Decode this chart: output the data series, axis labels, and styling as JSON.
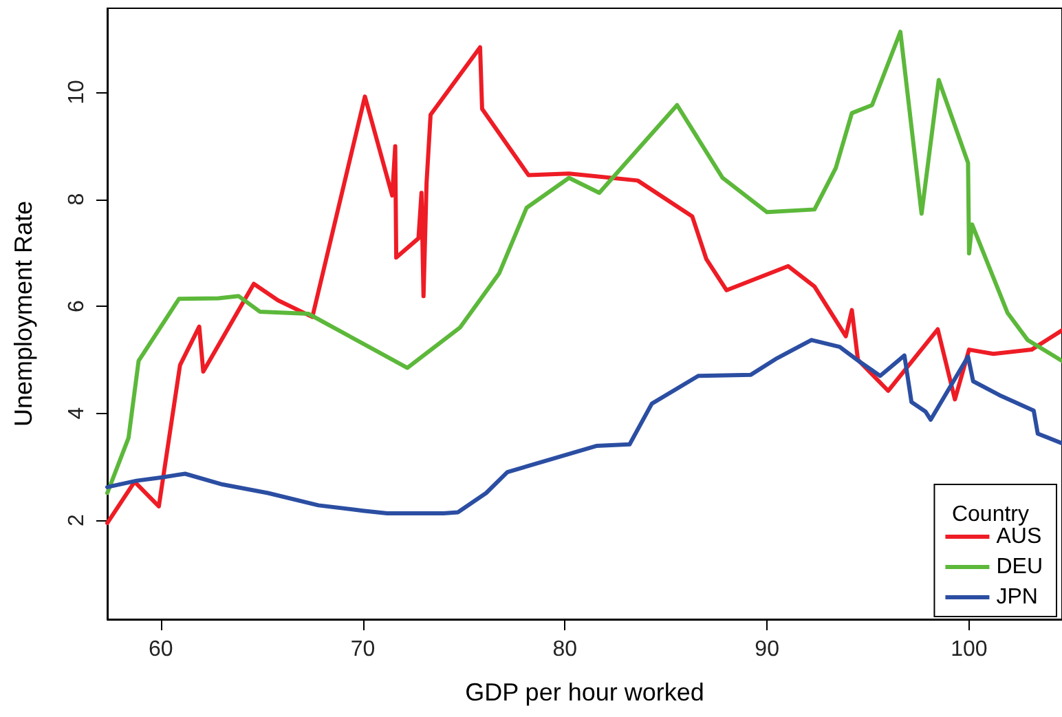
{
  "chart_data": {
    "type": "line",
    "xlabel": "GDP per hour worked",
    "ylabel": "Unemployment Rate",
    "legend_title": "Country",
    "legend": "bottom right",
    "grid": false,
    "marker": "none",
    "line_style": "solid",
    "xlim": [
      57.35,
      104.6
    ],
    "ylim": [
      0.15,
      11.57
    ],
    "xticks": [
      60,
      70,
      80,
      90,
      100
    ],
    "yticks": [
      2,
      4,
      6,
      8,
      10
    ],
    "series": [
      {
        "name": "AUS",
        "color": "#ee1c25",
        "x": [
          57.35,
          58.7,
          59.9,
          60.95,
          61.9,
          62.1,
          64.6,
          65.8,
          67.5,
          70.1,
          71.45,
          71.6,
          71.65,
          72.75,
          72.9,
          73.0,
          73.15,
          73.35,
          75.8,
          75.9,
          78.2,
          80.2,
          83.6,
          86.3,
          87.0,
          88.0,
          91.05,
          92.35,
          93.9,
          94.2,
          94.5,
          96.0,
          98.45,
          99.3,
          100.0,
          101.2,
          103.1,
          104.6
        ],
        "values": [
          1.95,
          2.72,
          2.26,
          4.9,
          5.62,
          4.78,
          6.42,
          6.11,
          5.8,
          9.92,
          8.07,
          8.99,
          6.91,
          7.27,
          8.12,
          6.19,
          8.3,
          9.58,
          10.84,
          9.69,
          8.45,
          8.48,
          8.35,
          7.68,
          6.88,
          6.3,
          6.75,
          6.37,
          5.44,
          5.93,
          5.0,
          4.42,
          5.57,
          4.26,
          5.19,
          5.11,
          5.19,
          5.55
        ]
      },
      {
        "name": "DEU",
        "color": "#5cb83a",
        "x": [
          57.35,
          58.4,
          58.9,
          60.9,
          62.85,
          63.85,
          64.9,
          67.3,
          72.2,
          74.8,
          76.75,
          78.1,
          80.2,
          81.7,
          85.55,
          87.8,
          90.0,
          92.35,
          93.4,
          94.2,
          95.2,
          96.6,
          97.65,
          98.5,
          99.95,
          100.0,
          100.15,
          101.9,
          102.9,
          104.6
        ],
        "values": [
          2.51,
          3.54,
          4.98,
          6.14,
          6.15,
          6.19,
          5.9,
          5.86,
          4.85,
          5.6,
          6.62,
          7.84,
          8.4,
          8.12,
          9.76,
          8.4,
          7.76,
          7.81,
          8.58,
          9.61,
          9.76,
          11.13,
          7.73,
          10.23,
          8.68,
          6.99,
          7.53,
          5.88,
          5.37,
          4.98
        ]
      },
      {
        "name": "JPN",
        "color": "#2b4ea2",
        "x": [
          57.35,
          58.8,
          60.0,
          61.2,
          63.05,
          65.3,
          67.8,
          70.0,
          71.2,
          74.0,
          74.7,
          76.1,
          77.15,
          78.3,
          81.55,
          83.2,
          84.3,
          86.6,
          89.2,
          90.5,
          92.2,
          93.6,
          94.6,
          95.6,
          96.8,
          97.15,
          97.85,
          98.1,
          99.95,
          100.2,
          101.5,
          103.2,
          103.4,
          104.6
        ],
        "values": [
          2.62,
          2.74,
          2.8,
          2.87,
          2.67,
          2.51,
          2.28,
          2.18,
          2.13,
          2.13,
          2.15,
          2.51,
          2.9,
          3.03,
          3.39,
          3.42,
          4.18,
          4.7,
          4.72,
          5.03,
          5.37,
          5.24,
          4.96,
          4.7,
          5.08,
          4.21,
          4.03,
          3.88,
          5.06,
          4.6,
          4.34,
          4.05,
          3.62,
          3.44
        ]
      }
    ]
  }
}
